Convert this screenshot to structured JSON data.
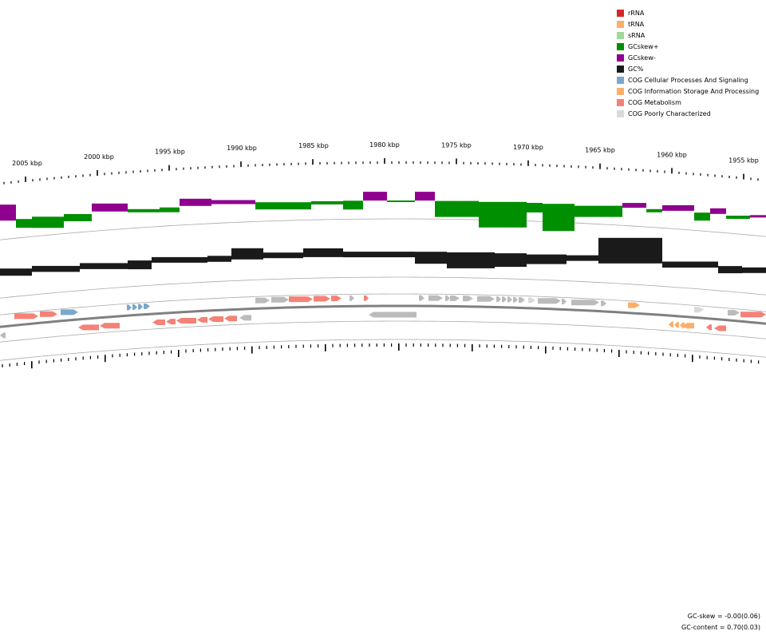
{
  "legend": [
    {
      "label": "rRNA",
      "color": "#d62728"
    },
    {
      "label": "tRNA",
      "color": "#fdae6b"
    },
    {
      "label": "sRNA",
      "color": "#a1d99b"
    },
    {
      "label": "GCskew+",
      "color": "#008f00"
    },
    {
      "label": "GCskew-",
      "color": "#8f008f"
    },
    {
      "label": "GC%",
      "color": "#1a1a1a"
    },
    {
      "label": "COG Cellular Processes And Signaling",
      "color": "#7ba7cc"
    },
    {
      "label": "COG Information Storage And Processing",
      "color": "#fdae6b"
    },
    {
      "label": "COG Metabolism",
      "color": "#f48277"
    },
    {
      "label": "COG Poorly Characterized",
      "color": "#d9d9d9"
    }
  ],
  "ruler": {
    "labels": [
      "2005 kbp",
      "2000 kbp",
      "1995 kbp",
      "1990 kbp",
      "1985 kbp",
      "1980 kbp",
      "1975 kbp",
      "1970 kbp",
      "1965 kbp",
      "1960 kbp",
      "1955 kbp"
    ]
  },
  "stats": {
    "gc_skew": "GC-skew = -0.00(0.06)",
    "gc_content": "GC-content = 0.70(0.03)"
  },
  "colors": {
    "skew_pos": "#008f00",
    "skew_neg": "#8f008f",
    "gc": "#1a1a1a",
    "metabolism": "#f48277",
    "cellular": "#7ba7cc",
    "info": "#fdae6b",
    "poor": "#d9d9d9",
    "gray": "#bbbbbb",
    "track": "#aaaaaa",
    "backbone": "#808080"
  }
}
